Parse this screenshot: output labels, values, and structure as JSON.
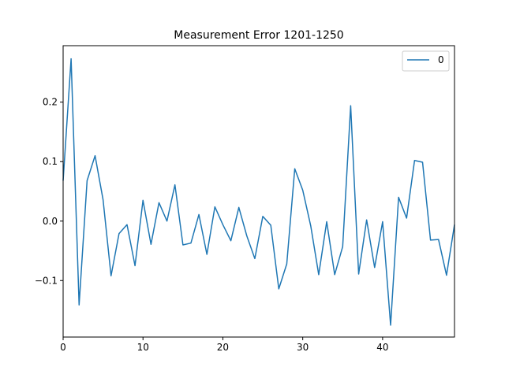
{
  "chart_data": {
    "type": "line",
    "title": "Measurement Error 1201-1250",
    "xlabel": "",
    "ylabel": "",
    "xlim": [
      0,
      49
    ],
    "ylim": [
      -0.195,
      0.295
    ],
    "x_ticks": [
      0,
      10,
      20,
      30,
      40
    ],
    "y_ticks": [
      -0.1,
      0.0,
      0.1,
      0.2
    ],
    "x_tick_labels": [
      "0",
      "10",
      "20",
      "30",
      "40"
    ],
    "y_tick_labels": [
      "−0.1",
      "0.0",
      "0.1",
      "0.2"
    ],
    "grid": false,
    "legend": "top-right",
    "series": [
      {
        "name": "0",
        "color": "#1f77b4",
        "x": [
          0,
          1,
          2,
          3,
          4,
          5,
          6,
          7,
          8,
          9,
          10,
          11,
          12,
          13,
          14,
          15,
          16,
          17,
          18,
          19,
          20,
          21,
          22,
          23,
          24,
          25,
          26,
          27,
          28,
          29,
          30,
          31,
          32,
          33,
          34,
          35,
          36,
          37,
          38,
          39,
          40,
          41,
          42,
          43,
          44,
          45,
          46,
          47,
          48,
          49
        ],
        "values": [
          0.068,
          0.273,
          -0.141,
          0.068,
          0.11,
          0.036,
          -0.092,
          -0.021,
          -0.006,
          -0.075,
          0.035,
          -0.039,
          0.031,
          0.0,
          0.061,
          -0.04,
          -0.037,
          0.011,
          -0.056,
          0.024,
          -0.006,
          -0.033,
          0.023,
          -0.025,
          -0.063,
          0.008,
          -0.007,
          -0.114,
          -0.072,
          0.088,
          0.052,
          -0.008,
          -0.09,
          -0.001,
          -0.09,
          -0.043,
          0.194,
          -0.089,
          0.002,
          -0.078,
          -0.001,
          -0.175,
          0.04,
          0.005,
          0.102,
          0.099,
          -0.032,
          -0.031,
          -0.091,
          -0.006
        ]
      }
    ]
  }
}
